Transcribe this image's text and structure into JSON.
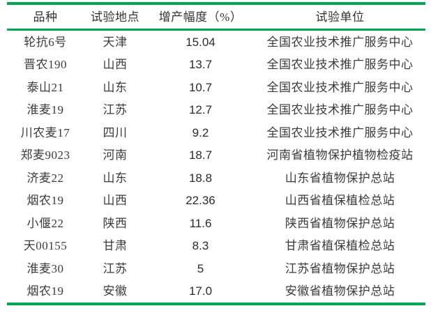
{
  "page": {
    "background_color": "#ffffff",
    "accent_color": "#00a651",
    "text_color": "#3b3b3b"
  },
  "table": {
    "headers": [
      "品种",
      "试验地点",
      "增产幅度（%）",
      "试验单位"
    ],
    "rows": [
      {
        "variety": "轮抗6号",
        "location": "天津",
        "increase": "15.04",
        "unit": "全国农业技术推广服务中心"
      },
      {
        "variety": "晋农190",
        "location": "山西",
        "increase": "13.7",
        "unit": "全国农业技术推广服务中心"
      },
      {
        "variety": "泰山21",
        "location": "山东",
        "increase": "10.7",
        "unit": "全国农业技术推广服务中心"
      },
      {
        "variety": "淮麦19",
        "location": "江苏",
        "increase": "12.7",
        "unit": "全国农业技术推广服务中心"
      },
      {
        "variety": "川农麦17",
        "location": "四川",
        "increase": "9.2",
        "unit": "全国农业技术推广服务中心"
      },
      {
        "variety": "郑麦9023",
        "location": "河南",
        "increase": "18.7",
        "unit": "河南省植物保护植物检疫站"
      },
      {
        "variety": "济麦22",
        "location": "山东",
        "increase": "18.8",
        "unit": "山东省植物保护总站"
      },
      {
        "variety": "烟农19",
        "location": "山西",
        "increase": "22.36",
        "unit": "山西省植保植检总站"
      },
      {
        "variety": "小偃22",
        "location": "陕西",
        "increase": "11.6",
        "unit": "陕西省植物保护总站"
      },
      {
        "variety": "天00155",
        "location": "甘肃",
        "increase": "8.3",
        "unit": "甘肃省植保植检总站"
      },
      {
        "variety": "淮麦30",
        "location": "江苏",
        "increase": "5",
        "unit": "江苏省植物保护总站"
      },
      {
        "variety": "烟农19",
        "location": "安徽",
        "increase": "17.0",
        "unit": "安徽省植物保护总站"
      }
    ]
  }
}
